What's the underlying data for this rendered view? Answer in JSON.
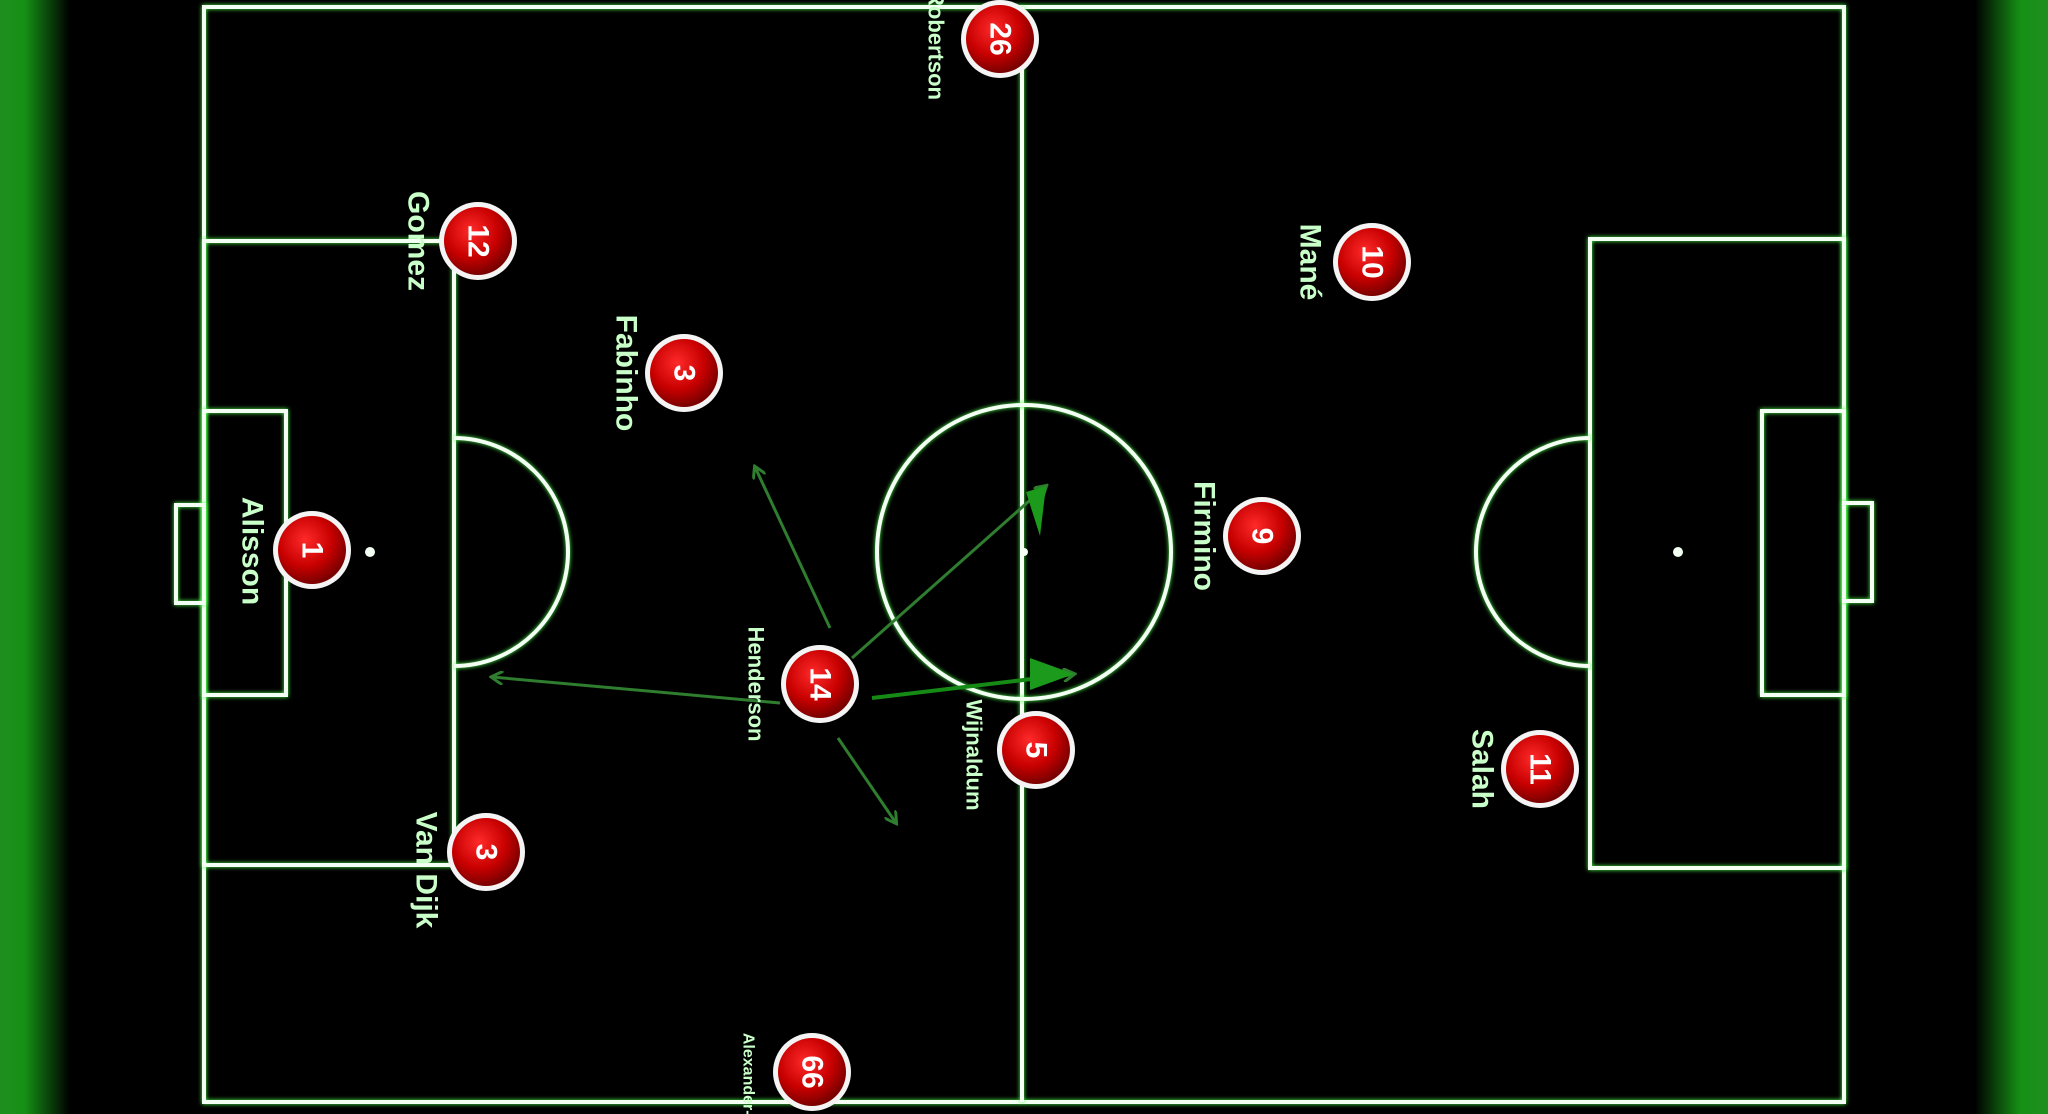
{
  "players": [
    {
      "number": "1",
      "name": "Alisson"
    },
    {
      "number": "12",
      "name": "Gomez"
    },
    {
      "number": "3",
      "name": "Van Dijk"
    },
    {
      "number": "3",
      "name": "Fabinho"
    },
    {
      "number": "14",
      "name": "Henderson"
    },
    {
      "number": "26",
      "name": "Robertson"
    },
    {
      "number": "66",
      "name": "Alexander-Arnold"
    },
    {
      "number": "5",
      "name": "Wijnaldum"
    },
    {
      "number": "9",
      "name": "Firmino"
    },
    {
      "number": "10",
      "name": "Mané"
    },
    {
      "number": "11",
      "name": "Salah"
    }
  ],
  "colors": {
    "pitch_line": "#f2fff2",
    "badge_red": "#c80000",
    "label_green": "#c9ffc9",
    "arrow_green": "#2f7d2f"
  }
}
